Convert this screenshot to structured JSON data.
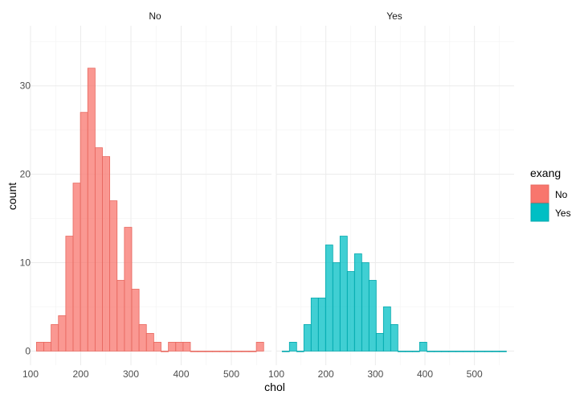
{
  "chart_data": {
    "type": "bar",
    "xlabel": "chol",
    "ylabel": "count",
    "xlim": [
      100,
      580
    ],
    "ylim": [
      -1.6,
      36.8
    ],
    "x_ticks": [
      100,
      200,
      300,
      400,
      500
    ],
    "y_ticks": [
      0,
      10,
      20,
      30
    ],
    "grid": true,
    "bin_width": 14.6,
    "bin_start": 111.8,
    "legend": {
      "title": "exang",
      "position": "right",
      "entries": [
        {
          "label": "No",
          "color": "#F8766D"
        },
        {
          "label": "Yes",
          "color": "#00BFC4"
        }
      ]
    },
    "panels": [
      {
        "strip": "No",
        "fill": "#F8766D",
        "stroke": "#E8685F",
        "values": [
          1,
          1,
          3,
          4,
          13,
          19,
          27,
          32,
          23,
          22,
          17,
          8,
          14,
          7,
          3,
          2,
          1,
          0,
          1,
          1,
          1,
          0,
          0,
          0,
          0,
          0,
          0,
          0,
          0,
          0,
          1
        ]
      },
      {
        "strip": "Yes",
        "fill": "#00BFC4",
        "stroke": "#00A7AC",
        "values": [
          0,
          1,
          0,
          3,
          6,
          6,
          12,
          10,
          13,
          9,
          11,
          10,
          8,
          2,
          5,
          3,
          0,
          0,
          0,
          1,
          0,
          0,
          0,
          0,
          0,
          0,
          0,
          0,
          0,
          0,
          0
        ]
      }
    ]
  }
}
